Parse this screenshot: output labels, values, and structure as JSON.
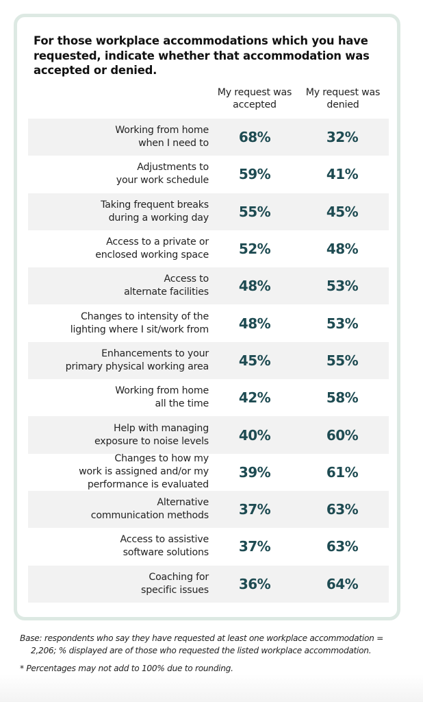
{
  "title": "For those workplace accommodations which you have requested, indicate whether that accommodation was accepted or denied.",
  "columns": {
    "accepted": "My request was accepted",
    "denied": "My request was denied"
  },
  "chart_data": {
    "type": "table",
    "title": "For those workplace accommodations which you have requested, indicate whether that accommodation was accepted or denied.",
    "columns": [
      "My request was accepted",
      "My request was denied"
    ],
    "unit": "%",
    "rows": [
      {
        "label": "Working from home when I need to",
        "accepted": 68,
        "denied": 32
      },
      {
        "label": "Adjustments to your work schedule",
        "accepted": 59,
        "denied": 41
      },
      {
        "label": "Taking frequent breaks during a working day",
        "accepted": 55,
        "denied": 45
      },
      {
        "label": "Access to a private or enclosed working space",
        "accepted": 52,
        "denied": 48
      },
      {
        "label": "Access to alternate facilities",
        "accepted": 48,
        "denied": 53
      },
      {
        "label": "Changes to intensity of the lighting where I sit/work from",
        "accepted": 48,
        "denied": 53
      },
      {
        "label": "Enhancements to your primary physical working area",
        "accepted": 45,
        "denied": 55
      },
      {
        "label": "Working from home all the time",
        "accepted": 42,
        "denied": 58
      },
      {
        "label": "Help with managing exposure to noise levels",
        "accepted": 40,
        "denied": 60
      },
      {
        "label": "Changes to how my work is assigned and/or my performance is evaluated",
        "accepted": 39,
        "denied": 61
      },
      {
        "label": "Alternative communication methods",
        "accepted": 37,
        "denied": 63
      },
      {
        "label": "Access to assistive software solutions",
        "accepted": 37,
        "denied": 63
      },
      {
        "label": "Coaching for specific issues",
        "accepted": 36,
        "denied": 64
      }
    ]
  },
  "rows": [
    {
      "label_lines": [
        "Working from home",
        "when I need to"
      ],
      "accepted": "68%",
      "denied": "32%"
    },
    {
      "label_lines": [
        "Adjustments to",
        "your work schedule"
      ],
      "accepted": "59%",
      "denied": "41%"
    },
    {
      "label_lines": [
        "Taking frequent breaks",
        "during a working day"
      ],
      "accepted": "55%",
      "denied": "45%"
    },
    {
      "label_lines": [
        "Access to a private or",
        "enclosed working space"
      ],
      "accepted": "52%",
      "denied": "48%"
    },
    {
      "label_lines": [
        "Access to",
        "alternate facilities"
      ],
      "accepted": "48%",
      "denied": "53%"
    },
    {
      "label_lines": [
        "Changes to intensity of the",
        "lighting where I sit/work from"
      ],
      "accepted": "48%",
      "denied": "53%"
    },
    {
      "label_lines": [
        "Enhancements to your",
        "primary physical working area"
      ],
      "accepted": "45%",
      "denied": "55%"
    },
    {
      "label_lines": [
        "Working from home",
        "all the time"
      ],
      "accepted": "42%",
      "denied": "58%"
    },
    {
      "label_lines": [
        "Help with managing",
        "exposure to noise levels"
      ],
      "accepted": "40%",
      "denied": "60%"
    },
    {
      "label_lines": [
        "Changes to how my",
        "work is assigned and/or my",
        "performance is evaluated"
      ],
      "accepted": "39%",
      "denied": "61%"
    },
    {
      "label_lines": [
        "Alternative",
        "communication methods"
      ],
      "accepted": "37%",
      "denied": "63%"
    },
    {
      "label_lines": [
        "Access to assistive",
        "software solutions"
      ],
      "accepted": "37%",
      "denied": "63%"
    },
    {
      "label_lines": [
        "Coaching for",
        "specific issues"
      ],
      "accepted": "36%",
      "denied": "64%"
    }
  ],
  "notes": {
    "base": "Base: respondents who say they have requested at least one workplace accommodation = 2,206; % displayed are of those who requested the listed workplace accommodation.",
    "footnote": "* Percentages may not add to 100% due to rounding."
  },
  "colors": {
    "value_text": "#1e4b52",
    "card_border": "#dde9e3",
    "row_shade": "#f2f2f2"
  }
}
